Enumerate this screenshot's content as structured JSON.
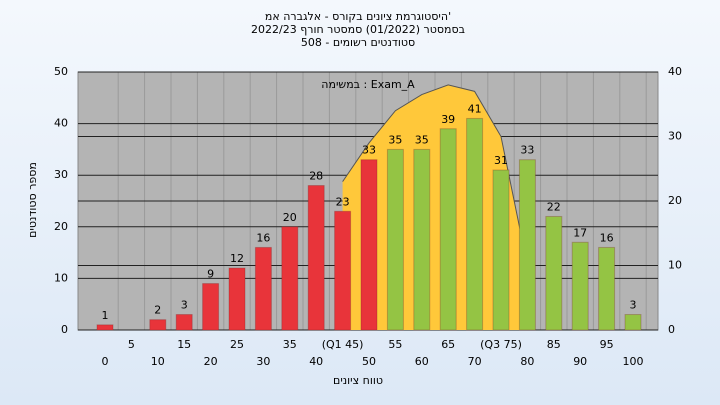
{
  "chart_data": {
    "type": "bar",
    "title": "היסטוגרמת ציונים בקורס - אלגברה אמ'",
    "subtitle": "בסמסטר (01/2022) סמסטר חורף 2022/23",
    "subtitle2": "סטודנטים רשומים - 508",
    "annotation": "במשימה : Exam_A",
    "y_label": "מספר סטודנטים",
    "x_label": "טווח ציונים",
    "categories": [
      "0",
      "5",
      "10",
      "15",
      "20",
      "25",
      "30",
      "35",
      "40",
      "(Q1 45)",
      "50",
      "55",
      "60",
      "65",
      "70",
      "(Q3 75)",
      "80",
      "85",
      "90",
      "95",
      "100"
    ],
    "series": [
      {
        "type": "area",
        "axis": "y2",
        "color": "#ffc83a",
        "values": [
          null,
          null,
          null,
          null,
          null,
          null,
          null,
          null,
          null,
          23,
          29,
          34,
          36.5,
          38,
          37,
          30,
          10,
          null,
          null,
          null,
          null
        ]
      },
      {
        "type": "bar",
        "colors": [
          "#e8343a",
          "#e8343a",
          "#e8343a",
          "#e8343a",
          "#e8343a",
          "#e8343a",
          "#e8343a",
          "#e8343a",
          "#e8343a",
          "#e8343a",
          "#e8343a",
          "#94c444",
          "#94c444",
          "#94c444",
          "#94c444",
          "#94c444",
          "#94c444",
          "#94c444",
          "#94c444",
          "#94c444",
          "#94c444"
        ],
        "values": [
          1,
          0,
          2,
          3,
          9,
          12,
          16,
          20,
          28,
          23,
          33,
          35,
          35,
          39,
          41,
          31,
          33,
          22,
          17,
          16,
          3
        ],
        "value_labels": [
          "1",
          null,
          "2",
          "3",
          "9",
          "12",
          "16",
          "20",
          "28",
          "23",
          "33",
          "35",
          "35",
          "39",
          "41",
          "31",
          "33",
          "22",
          "17",
          "16",
          "3"
        ]
      }
    ],
    "ylim": [
      0,
      50
    ],
    "yticks": [
      0,
      10,
      20,
      30,
      40,
      50
    ],
    "y2lim": [
      0,
      40
    ],
    "y2ticks": [
      0,
      10,
      20,
      30,
      40
    ],
    "grid": true
  }
}
